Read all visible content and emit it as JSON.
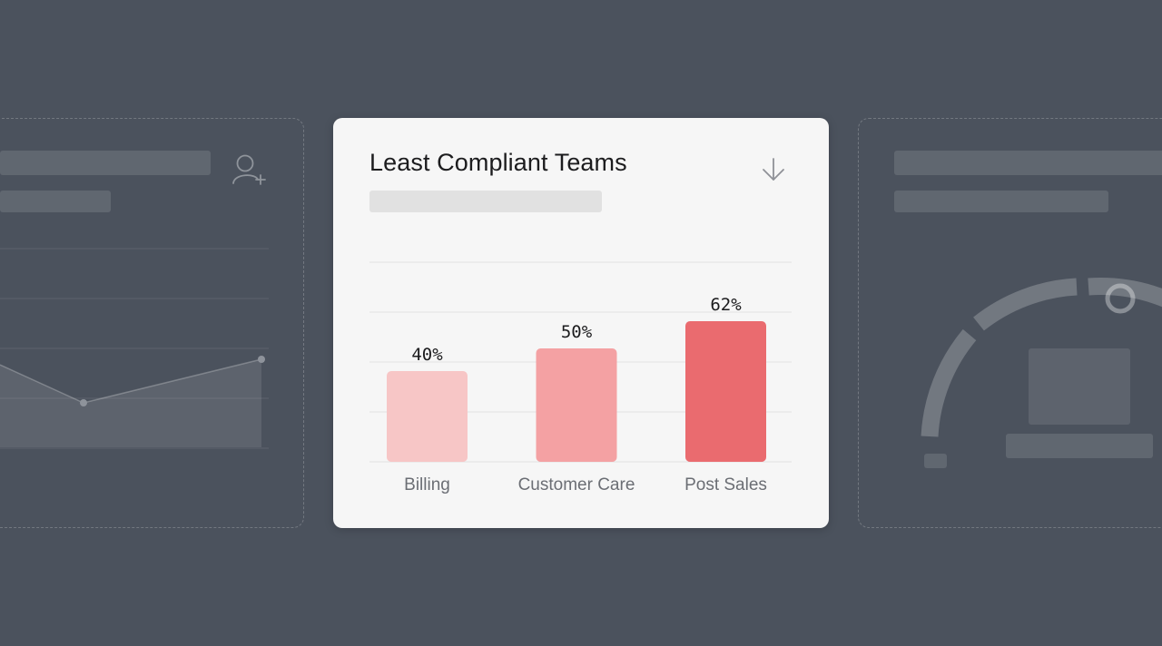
{
  "card": {
    "title": "Least Compliant Teams"
  },
  "icons": {
    "download": "arrow-down-icon",
    "add_user": "user-plus-icon"
  },
  "colors": {
    "bars": [
      "#f7c6c6",
      "#f4a1a3",
      "#ea6b6f"
    ],
    "background": "#4b525d",
    "card": "#f6f6f6"
  },
  "chart_data": {
    "type": "bar",
    "title": "Least Compliant Teams",
    "categories": [
      "Billing",
      "Customer Care",
      "Post Sales"
    ],
    "values": [
      40,
      50,
      62
    ],
    "value_labels": [
      "40%",
      "50%",
      "62%"
    ],
    "ylim": [
      0,
      100
    ],
    "grid": true,
    "legend": "none"
  }
}
